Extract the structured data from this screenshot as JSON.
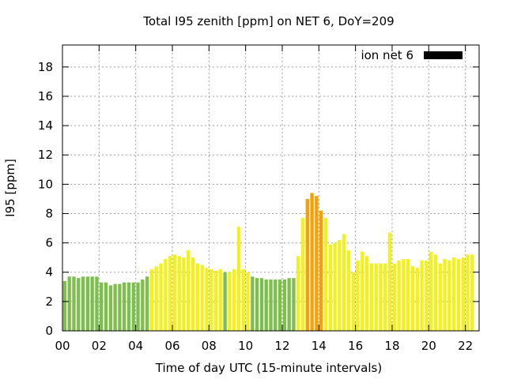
{
  "chart_data": {
    "type": "bar",
    "title": "Total I95 zenith [ppm] on NET 6, DoY=209",
    "xlabel": "Time of day UTC (15-minute intervals)",
    "ylabel": "I95 [ppm]",
    "xlim": [
      0,
      22.75
    ],
    "ylim": [
      0,
      19.5
    ],
    "x_ticks": [
      {
        "v": 0,
        "label": "00"
      },
      {
        "v": 2,
        "label": "02"
      },
      {
        "v": 4,
        "label": "04"
      },
      {
        "v": 6,
        "label": "06"
      },
      {
        "v": 8,
        "label": "08"
      },
      {
        "v": 10,
        "label": "10"
      },
      {
        "v": 12,
        "label": "12"
      },
      {
        "v": 14,
        "label": "14"
      },
      {
        "v": 16,
        "label": "16"
      },
      {
        "v": 18,
        "label": "18"
      },
      {
        "v": 20,
        "label": "20"
      },
      {
        "v": 22,
        "label": "22"
      }
    ],
    "y_ticks": [
      {
        "v": 0,
        "label": "0"
      },
      {
        "v": 2,
        "label": "2"
      },
      {
        "v": 4,
        "label": "4"
      },
      {
        "v": 6,
        "label": "6"
      },
      {
        "v": 8,
        "label": "8"
      },
      {
        "v": 10,
        "label": "10"
      },
      {
        "v": 12,
        "label": "12"
      },
      {
        "v": 14,
        "label": "14"
      },
      {
        "v": 16,
        "label": "16"
      },
      {
        "v": 18,
        "label": "18"
      }
    ],
    "grid": true,
    "legend": {
      "label": "ion net 6",
      "color": "#000000",
      "position": "top-right"
    },
    "colors": {
      "green": "#7cbf4a",
      "yellow": "#f2f21a",
      "orange": "#f5a100"
    },
    "bar_interval_hours": 0.25,
    "series": [
      {
        "values": [
          3.4,
          3.7,
          3.7,
          3.6,
          3.7,
          3.7,
          3.7,
          3.7,
          3.3,
          3.3,
          3.1,
          3.2,
          3.2,
          3.3,
          3.3,
          3.3,
          3.3,
          3.5,
          3.7,
          4.2,
          4.4,
          4.6,
          4.9,
          5.1,
          5.2,
          5.1,
          5.0,
          5.5,
          5.0,
          4.6,
          4.5,
          4.3,
          4.2,
          4.1,
          4.2,
          4.0,
          4.0,
          4.2,
          7.1,
          4.2,
          4.0,
          3.7,
          3.6,
          3.6,
          3.5,
          3.5,
          3.5,
          3.5,
          3.5,
          3.6,
          3.6,
          5.1,
          7.7,
          9.0,
          9.4,
          9.2,
          8.2,
          7.7,
          5.9,
          6.0,
          6.2,
          6.6,
          5.5,
          4.0,
          4.8,
          5.4,
          5.1,
          4.6,
          4.6,
          4.6,
          4.6,
          6.7,
          4.6,
          4.8,
          4.9,
          4.9,
          4.4,
          4.3,
          4.8,
          4.8,
          5.4,
          5.2,
          4.6,
          4.9,
          4.8,
          5.0,
          4.9,
          5.0,
          5.2,
          5.2
        ],
        "colors": [
          "green",
          "green",
          "green",
          "green",
          "green",
          "green",
          "green",
          "green",
          "green",
          "green",
          "green",
          "green",
          "green",
          "green",
          "green",
          "green",
          "green",
          "green",
          "green",
          "yellow",
          "yellow",
          "yellow",
          "yellow",
          "yellow",
          "yellow",
          "yellow",
          "yellow",
          "yellow",
          "yellow",
          "yellow",
          "yellow",
          "yellow",
          "yellow",
          "yellow",
          "yellow",
          "green",
          "yellow",
          "yellow",
          "yellow",
          "yellow",
          "yellow",
          "green",
          "green",
          "green",
          "green",
          "green",
          "green",
          "green",
          "green",
          "green",
          "green",
          "yellow",
          "yellow",
          "orange",
          "orange",
          "orange",
          "orange",
          "yellow",
          "yellow",
          "yellow",
          "yellow",
          "yellow",
          "yellow",
          "yellow",
          "yellow",
          "yellow",
          "yellow",
          "yellow",
          "yellow",
          "yellow",
          "yellow",
          "yellow",
          "yellow",
          "yellow",
          "yellow",
          "yellow",
          "yellow",
          "yellow",
          "yellow",
          "yellow",
          "yellow",
          "yellow",
          "yellow",
          "yellow",
          "yellow",
          "yellow",
          "yellow",
          "yellow",
          "yellow",
          "yellow"
        ]
      }
    ]
  }
}
